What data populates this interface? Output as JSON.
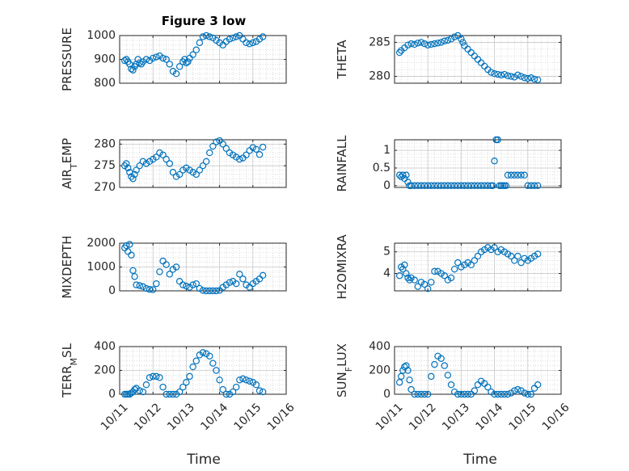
{
  "figure": {
    "title": "Figure 3 low",
    "xlabel": "Time"
  },
  "colors": {
    "marker": "#0072BD",
    "axes": "#262626",
    "grid": "#c8c8c8",
    "background": "#ffffff"
  },
  "chart_data": [
    {
      "type": "scatter",
      "name": "PRESSURE",
      "ylabel": "PRESSURE",
      "ylim": [
        800,
        1000
      ],
      "yticks": [
        800,
        900,
        1000
      ],
      "ytick_labels": [
        "800",
        "900",
        "1000"
      ],
      "xlim": [
        0,
        5
      ],
      "xticks": [
        0,
        1,
        2,
        3,
        4,
        5
      ],
      "xtick_labels": [
        "10/11",
        "10/12",
        "10/13",
        "10/14",
        "10/15",
        "10/16"
      ],
      "show_xtick_labels": false,
      "grid": true,
      "marker": "o",
      "x": [
        0.15,
        0.2,
        0.25,
        0.3,
        0.35,
        0.4,
        0.45,
        0.5,
        0.55,
        0.6,
        0.65,
        0.7,
        0.8,
        0.9,
        1.0,
        1.1,
        1.2,
        1.3,
        1.4,
        1.5,
        1.6,
        1.7,
        1.8,
        1.9,
        1.95,
        2.0,
        2.05,
        2.1,
        2.2,
        2.3,
        2.4,
        2.5,
        2.6,
        2.7,
        2.8,
        2.9,
        3.0,
        3.1,
        3.2,
        3.3,
        3.4,
        3.5,
        3.6,
        3.7,
        3.8,
        3.9,
        4.0,
        4.1,
        4.2,
        4.3
      ],
      "y": [
        895,
        900,
        890,
        880,
        860,
        855,
        870,
        880,
        900,
        885,
        880,
        890,
        900,
        895,
        905,
        910,
        915,
        905,
        900,
        880,
        850,
        840,
        870,
        890,
        900,
        885,
        890,
        905,
        920,
        940,
        970,
        995,
        1000,
        995,
        990,
        980,
        970,
        960,
        975,
        985,
        990,
        995,
        1000,
        985,
        970,
        965,
        970,
        975,
        985,
        995
      ]
    },
    {
      "type": "scatter",
      "name": "THETA",
      "ylabel": "THETA",
      "ylim": [
        279,
        286
      ],
      "yticks": [
        280,
        285
      ],
      "ytick_labels": [
        "280",
        "285"
      ],
      "xlim": [
        0,
        5
      ],
      "xticks": [
        0,
        1,
        2,
        3,
        4,
        5
      ],
      "xtick_labels": [
        "10/11",
        "10/12",
        "10/13",
        "10/14",
        "10/15",
        "10/16"
      ],
      "show_xtick_labels": false,
      "grid": true,
      "marker": "o",
      "x": [
        0.15,
        0.2,
        0.3,
        0.4,
        0.5,
        0.6,
        0.7,
        0.8,
        0.9,
        1.0,
        1.1,
        1.2,
        1.3,
        1.4,
        1.5,
        1.6,
        1.7,
        1.8,
        1.9,
        2.0,
        2.05,
        2.1,
        2.2,
        2.3,
        2.4,
        2.5,
        2.6,
        2.7,
        2.8,
        2.9,
        3.0,
        3.1,
        3.2,
        3.3,
        3.4,
        3.5,
        3.6,
        3.7,
        3.8,
        3.9,
        4.0,
        4.1,
        4.2,
        4.3
      ],
      "y": [
        283.5,
        283.8,
        284.2,
        284.6,
        284.8,
        284.7,
        284.9,
        285.0,
        284.8,
        284.6,
        284.7,
        284.8,
        284.9,
        285.0,
        285.2,
        285.3,
        285.5,
        285.8,
        286.0,
        285.5,
        285.0,
        284.5,
        284.0,
        283.5,
        283.0,
        282.5,
        282.0,
        281.5,
        281.0,
        280.6,
        280.4,
        280.3,
        280.2,
        280.3,
        280.1,
        280.0,
        279.9,
        280.2,
        280.0,
        279.8,
        279.7,
        279.8,
        279.6,
        279.5
      ]
    },
    {
      "type": "scatter",
      "name": "AIR_TEMP",
      "ylabel": "AIR_TEMP",
      "ylim": [
        270,
        281
      ],
      "yticks": [
        270,
        275,
        280
      ],
      "ytick_labels": [
        "270",
        "275",
        "280"
      ],
      "xlim": [
        0,
        5
      ],
      "xticks": [
        0,
        1,
        2,
        3,
        4,
        5
      ],
      "xtick_labels": [
        "10/11",
        "10/12",
        "10/13",
        "10/14",
        "10/15",
        "10/16"
      ],
      "show_xtick_labels": false,
      "grid": true,
      "marker": "o",
      "x": [
        0.15,
        0.2,
        0.25,
        0.3,
        0.35,
        0.4,
        0.45,
        0.5,
        0.6,
        0.7,
        0.8,
        0.9,
        1.0,
        1.1,
        1.2,
        1.3,
        1.4,
        1.5,
        1.6,
        1.7,
        1.8,
        1.9,
        2.0,
        2.1,
        2.2,
        2.3,
        2.4,
        2.5,
        2.6,
        2.7,
        2.8,
        2.9,
        3.0,
        3.1,
        3.2,
        3.3,
        3.4,
        3.5,
        3.6,
        3.7,
        3.8,
        3.9,
        4.0,
        4.1,
        4.2,
        4.3
      ],
      "y": [
        275,
        275.5,
        274.5,
        273.5,
        272.5,
        272,
        273,
        274,
        275,
        276,
        275.5,
        276,
        276.5,
        277,
        278,
        277.5,
        276.5,
        275.5,
        273.5,
        272.5,
        273,
        274,
        274.5,
        274,
        273.5,
        273,
        274,
        275,
        276,
        278,
        279.5,
        280.5,
        280.8,
        280,
        279,
        278,
        277.5,
        277,
        276.5,
        276.8,
        277.5,
        278.5,
        279.2,
        278.8,
        277.6,
        279.3
      ]
    },
    {
      "type": "scatter",
      "name": "RAINFALL",
      "ylabel": "RAINFALL",
      "ylim": [
        -0.05,
        1.3
      ],
      "yticks": [
        0,
        0.5,
        1
      ],
      "ytick_labels": [
        "0",
        "0.5",
        "1"
      ],
      "xlim": [
        0,
        5
      ],
      "xticks": [
        0,
        1,
        2,
        3,
        4,
        5
      ],
      "xtick_labels": [
        "10/11",
        "10/12",
        "10/13",
        "10/14",
        "10/15",
        "10/16"
      ],
      "show_xtick_labels": false,
      "grid": true,
      "marker": "o",
      "x": [
        0.15,
        0.2,
        0.25,
        0.3,
        0.35,
        0.4,
        0.45,
        0.5,
        0.6,
        0.7,
        0.8,
        0.9,
        1.0,
        1.1,
        1.2,
        1.3,
        1.4,
        1.5,
        1.6,
        1.7,
        1.8,
        1.9,
        2.0,
        2.1,
        2.2,
        2.3,
        2.4,
        2.5,
        2.6,
        2.7,
        2.8,
        2.9,
        2.95,
        3.0,
        3.05,
        3.1,
        3.15,
        3.2,
        3.25,
        3.3,
        3.35,
        3.4,
        3.5,
        3.6,
        3.7,
        3.8,
        3.9,
        4.0,
        4.1,
        4.2,
        4.3
      ],
      "y": [
        0.3,
        0.25,
        0.3,
        0.2,
        0.3,
        0.1,
        0,
        0,
        0,
        0,
        0,
        0,
        0,
        0,
        0,
        0,
        0,
        0,
        0,
        0,
        0,
        0,
        0,
        0,
        0,
        0,
        0,
        0,
        0,
        0,
        0,
        0,
        0,
        0.7,
        1.3,
        1.3,
        0,
        0,
        0,
        0,
        0,
        0.3,
        0.3,
        0.3,
        0.3,
        0.3,
        0.3,
        0,
        0,
        0,
        0
      ]
    },
    {
      "type": "scatter",
      "name": "MIXDEPTH",
      "ylabel": "MIXDEPTH",
      "ylim": [
        0,
        2000
      ],
      "yticks": [
        0,
        1000,
        2000
      ],
      "ytick_labels": [
        "0",
        "1000",
        "2000"
      ],
      "xlim": [
        0,
        5
      ],
      "xticks": [
        0,
        1,
        2,
        3,
        4,
        5
      ],
      "xtick_labels": [
        "10/11",
        "10/12",
        "10/13",
        "10/14",
        "10/15",
        "10/16"
      ],
      "show_xtick_labels": false,
      "grid": true,
      "marker": "o",
      "x": [
        0.15,
        0.2,
        0.25,
        0.3,
        0.35,
        0.4,
        0.45,
        0.5,
        0.6,
        0.7,
        0.8,
        0.9,
        1.0,
        1.1,
        1.2,
        1.3,
        1.4,
        1.5,
        1.6,
        1.7,
        1.8,
        1.9,
        2.0,
        2.1,
        2.2,
        2.3,
        2.4,
        2.5,
        2.6,
        2.7,
        2.8,
        2.9,
        3.0,
        3.1,
        3.2,
        3.3,
        3.4,
        3.5,
        3.6,
        3.7,
        3.8,
        3.9,
        4.0,
        4.1,
        4.2,
        4.3
      ],
      "y": [
        1800,
        1900,
        1650,
        1950,
        1500,
        850,
        600,
        250,
        220,
        180,
        100,
        60,
        50,
        300,
        800,
        1250,
        1100,
        700,
        900,
        1000,
        400,
        250,
        200,
        150,
        250,
        300,
        100,
        20,
        0,
        0,
        0,
        0,
        20,
        150,
        250,
        350,
        400,
        300,
        700,
        500,
        250,
        150,
        300,
        400,
        500,
        650
      ]
    },
    {
      "type": "scatter",
      "name": "H2OMIXRA",
      "ylabel": "H2OMIXRA",
      "ylim": [
        3.2,
        5.4
      ],
      "yticks": [
        4,
        5
      ],
      "ytick_labels": [
        "4",
        "5"
      ],
      "xlim": [
        0,
        5
      ],
      "xticks": [
        0,
        1,
        2,
        3,
        4,
        5
      ],
      "xtick_labels": [
        "10/11",
        "10/12",
        "10/13",
        "10/14",
        "10/15",
        "10/16"
      ],
      "show_xtick_labels": false,
      "grid": true,
      "marker": "o",
      "x": [
        0.15,
        0.2,
        0.25,
        0.3,
        0.35,
        0.4,
        0.45,
        0.5,
        0.6,
        0.7,
        0.8,
        0.9,
        1.0,
        1.1,
        1.2,
        1.3,
        1.4,
        1.5,
        1.6,
        1.7,
        1.8,
        1.9,
        2.0,
        2.1,
        2.2,
        2.3,
        2.4,
        2.5,
        2.6,
        2.7,
        2.8,
        2.9,
        3.0,
        3.1,
        3.2,
        3.3,
        3.4,
        3.5,
        3.6,
        3.7,
        3.8,
        3.9,
        4.0,
        4.1,
        4.2,
        4.3
      ],
      "y": [
        3.9,
        4.3,
        4.2,
        4.4,
        4.0,
        3.8,
        3.7,
        3.8,
        3.7,
        3.4,
        3.6,
        3.5,
        3.3,
        3.6,
        4.1,
        4.1,
        4.0,
        3.9,
        3.7,
        3.8,
        4.2,
        4.5,
        4.3,
        4.4,
        4.5,
        4.4,
        4.6,
        4.8,
        5.0,
        5.1,
        5.2,
        5.1,
        5.2,
        5.0,
        5.1,
        5.0,
        4.9,
        4.8,
        4.6,
        4.8,
        4.5,
        4.7,
        4.6,
        4.7,
        4.8,
        4.9
      ]
    },
    {
      "type": "scatter",
      "name": "TERR_MSL",
      "ylabel": "TERR_MSL",
      "ylim": [
        0,
        400
      ],
      "yticks": [
        0,
        200,
        400
      ],
      "ytick_labels": [
        "0",
        "200",
        "400"
      ],
      "xlim": [
        0,
        5
      ],
      "xticks": [
        0,
        1,
        2,
        3,
        4,
        5
      ],
      "xtick_labels": [
        "10/11",
        "10/12",
        "10/13",
        "10/14",
        "10/15",
        "10/16"
      ],
      "show_xtick_labels": true,
      "grid": true,
      "marker": "o",
      "x": [
        0.15,
        0.2,
        0.25,
        0.3,
        0.35,
        0.4,
        0.45,
        0.5,
        0.6,
        0.7,
        0.8,
        0.9,
        1.0,
        1.1,
        1.2,
        1.3,
        1.4,
        1.5,
        1.6,
        1.7,
        1.8,
        1.9,
        2.0,
        2.1,
        2.2,
        2.3,
        2.4,
        2.5,
        2.6,
        2.7,
        2.8,
        2.9,
        3.0,
        3.1,
        3.2,
        3.3,
        3.4,
        3.5,
        3.6,
        3.7,
        3.8,
        3.9,
        4.0,
        4.1,
        4.2,
        4.3
      ],
      "y": [
        0,
        0,
        0,
        0,
        10,
        20,
        40,
        50,
        30,
        20,
        80,
        140,
        150,
        150,
        140,
        60,
        0,
        0,
        0,
        0,
        20,
        60,
        100,
        150,
        230,
        280,
        330,
        350,
        340,
        320,
        260,
        200,
        120,
        40,
        0,
        0,
        20,
        60,
        120,
        130,
        120,
        110,
        100,
        80,
        30,
        20
      ]
    },
    {
      "type": "scatter",
      "name": "SUN_FLUX",
      "ylabel": "SUN_FLUX",
      "ylim": [
        0,
        400
      ],
      "yticks": [
        0,
        200,
        400
      ],
      "ytick_labels": [
        "0",
        "200",
        "400"
      ],
      "xlim": [
        0,
        5
      ],
      "xticks": [
        0,
        1,
        2,
        3,
        4,
        5
      ],
      "xtick_labels": [
        "10/11",
        "10/12",
        "10/13",
        "10/14",
        "10/15",
        "10/16"
      ],
      "show_xtick_labels": true,
      "grid": true,
      "marker": "o",
      "x": [
        0.15,
        0.2,
        0.25,
        0.3,
        0.35,
        0.4,
        0.45,
        0.5,
        0.6,
        0.7,
        0.8,
        0.9,
        1.0,
        1.1,
        1.2,
        1.3,
        1.4,
        1.5,
        1.6,
        1.7,
        1.8,
        1.9,
        2.0,
        2.1,
        2.2,
        2.3,
        2.4,
        2.5,
        2.6,
        2.7,
        2.8,
        2.9,
        3.0,
        3.1,
        3.2,
        3.3,
        3.4,
        3.5,
        3.6,
        3.7,
        3.8,
        3.9,
        4.0,
        4.1,
        4.2,
        4.3
      ],
      "y": [
        100,
        150,
        200,
        230,
        240,
        200,
        120,
        40,
        0,
        0,
        0,
        0,
        0,
        150,
        250,
        320,
        300,
        240,
        160,
        80,
        20,
        0,
        0,
        0,
        0,
        0,
        30,
        80,
        110,
        90,
        60,
        20,
        0,
        0,
        0,
        0,
        0,
        10,
        30,
        40,
        30,
        10,
        0,
        0,
        50,
        80
      ]
    }
  ]
}
